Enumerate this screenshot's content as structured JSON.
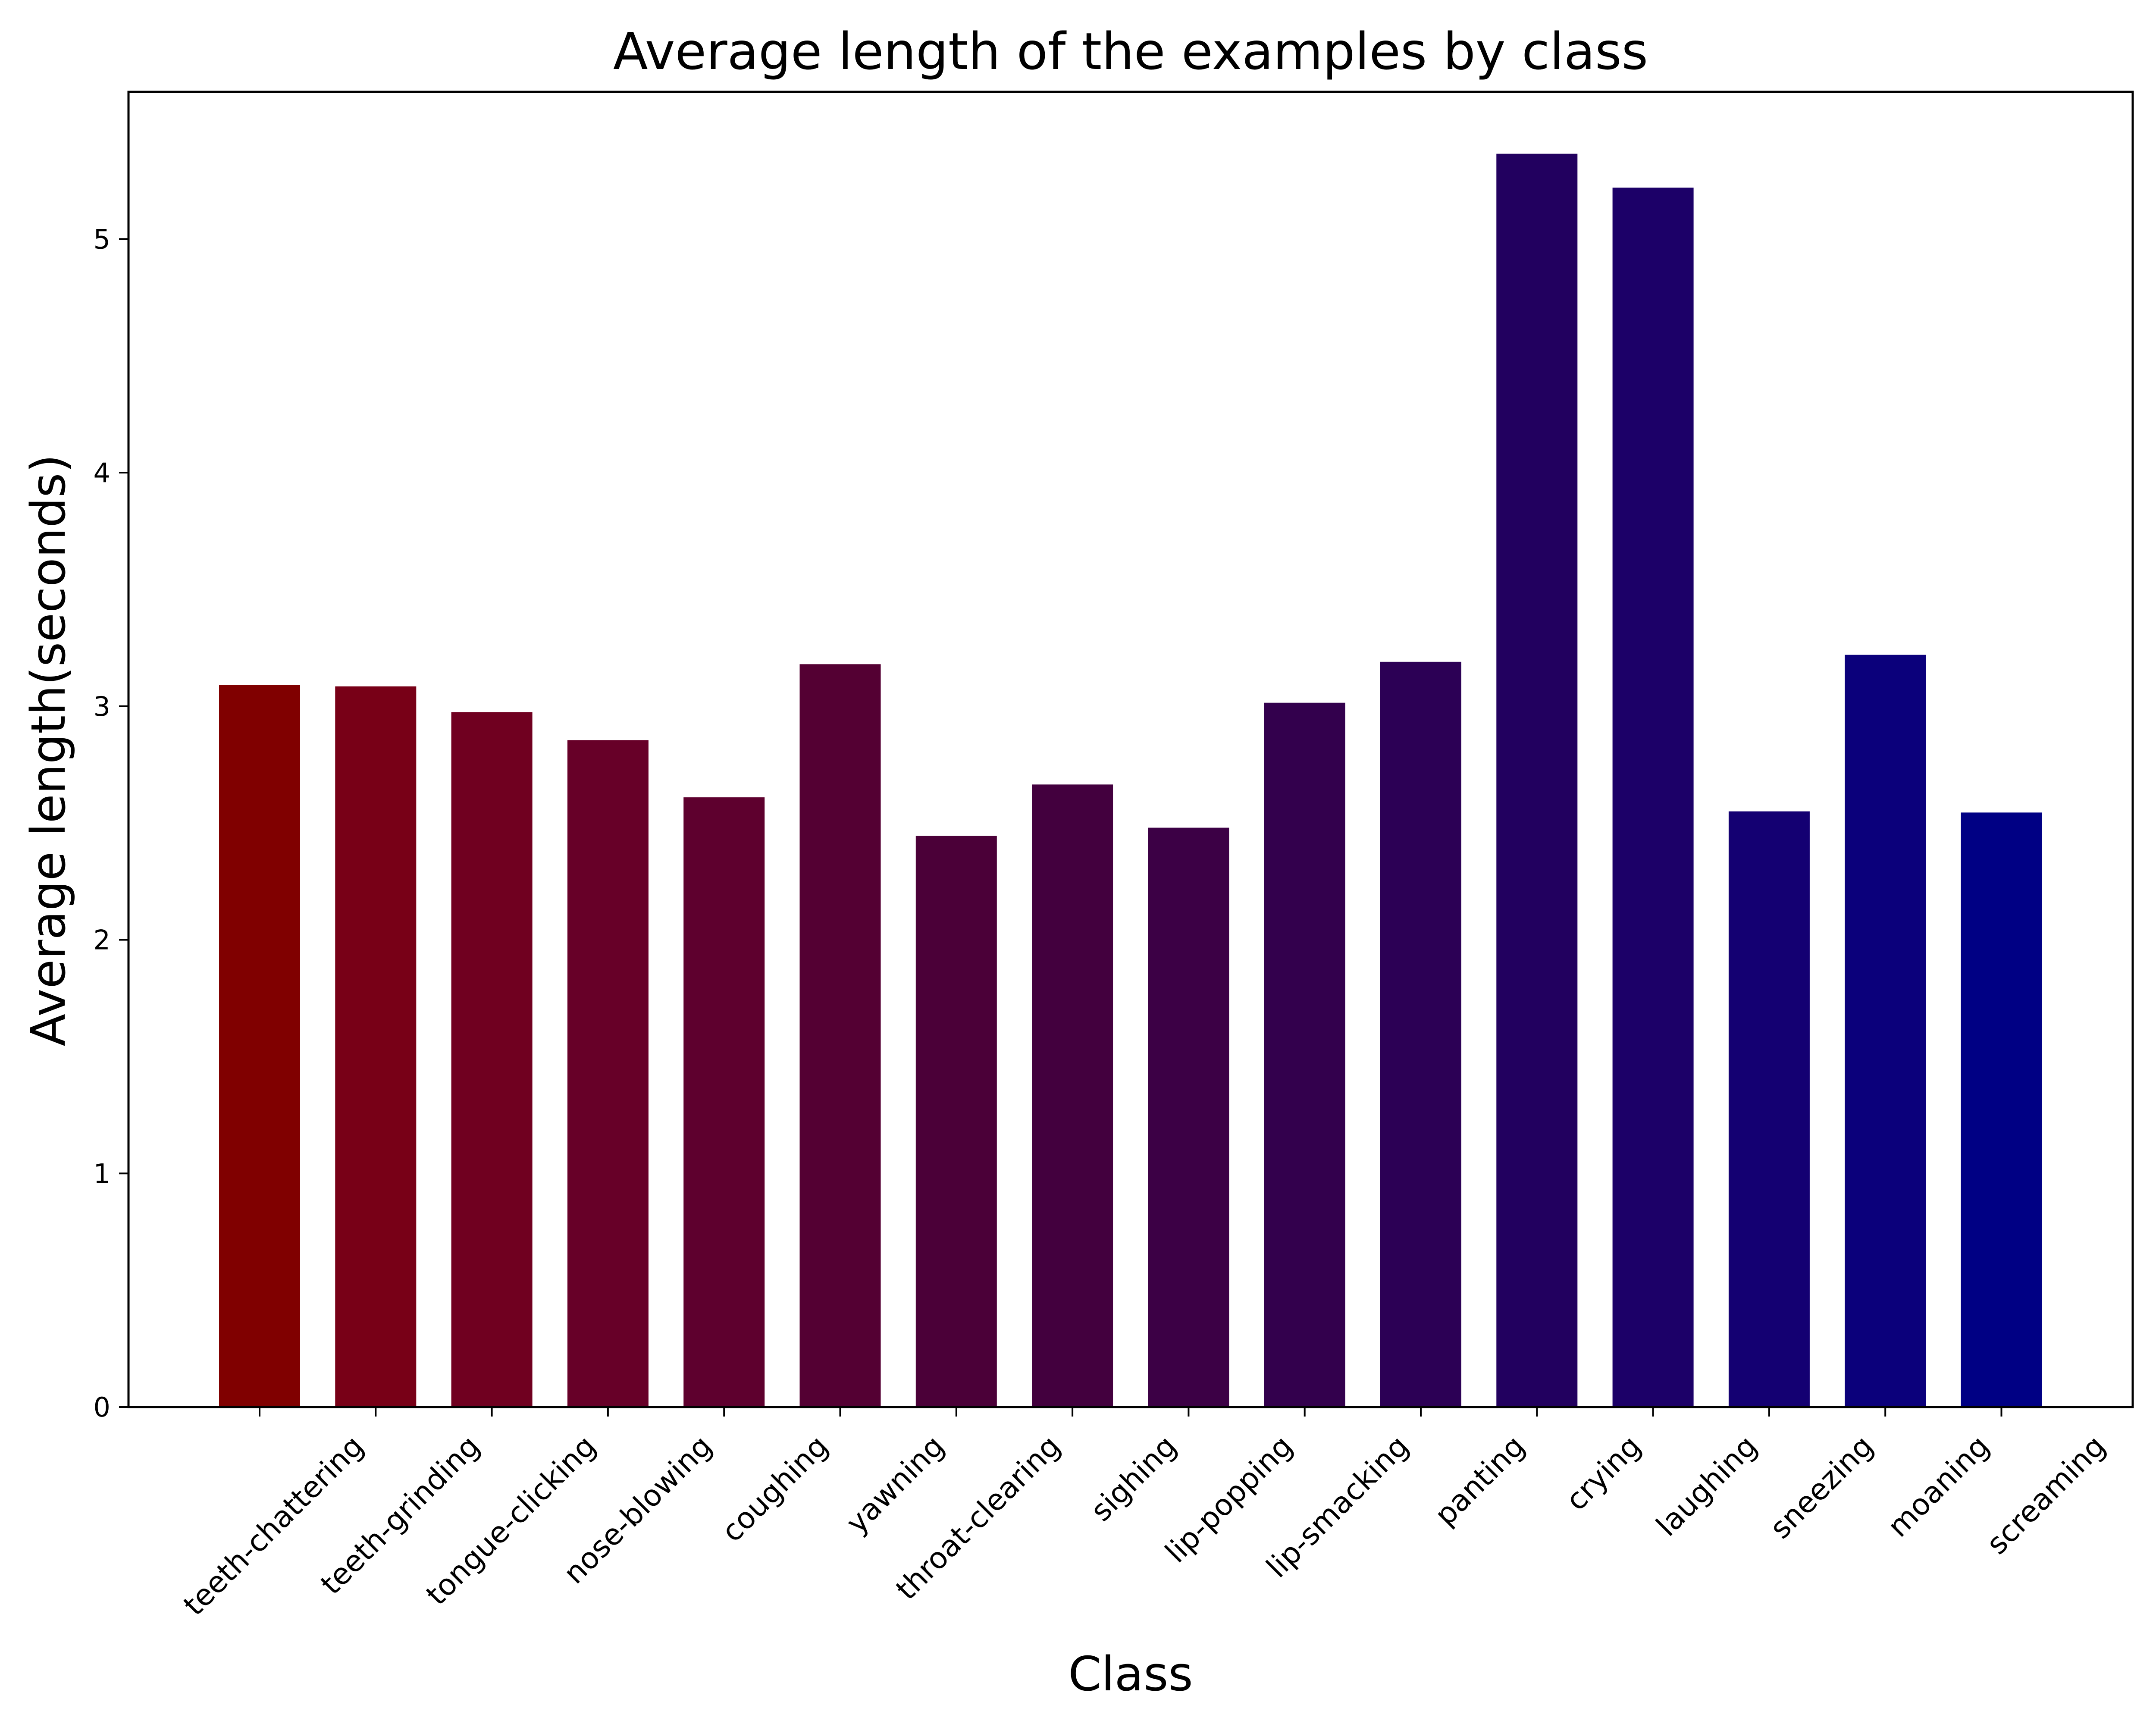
{
  "chart_data": {
    "type": "bar",
    "title": "Average length of the examples by class",
    "xlabel": "Class",
    "ylabel": "Average length(seconds)",
    "categories": [
      "teeth-chattering",
      "teeth-grinding",
      "tongue-clicking",
      "nose-blowing",
      "coughing",
      "yawning",
      "throat-clearing",
      "sighing",
      "lip-popping",
      "lip-smacking",
      "panting",
      "crying",
      "laughing",
      "sneezing",
      "moaning",
      "screaming"
    ],
    "values": [
      3.09,
      3.085,
      2.975,
      2.855,
      2.61,
      3.18,
      2.445,
      2.665,
      2.48,
      3.015,
      3.19,
      5.365,
      5.22,
      2.55,
      3.22,
      2.545
    ],
    "colors": [
      "#800000",
      "#780017",
      "#700020",
      "#670028",
      "#5e002e",
      "#540033",
      "#4b0038",
      "#43003e",
      "#3c0045",
      "#33004d",
      "#2c0055",
      "#22005f",
      "#1c0068",
      "#140072",
      "#0b007b",
      "#000084"
    ],
    "ylim": [
      0,
      5.63
    ],
    "yticks": [
      0,
      1,
      2,
      3,
      4,
      5
    ],
    "grid": false,
    "legend": "none"
  }
}
